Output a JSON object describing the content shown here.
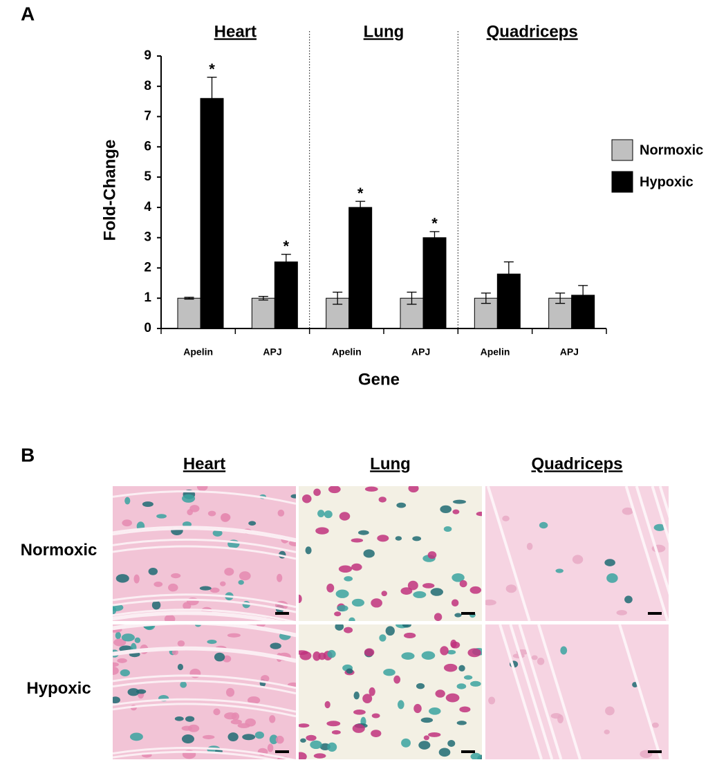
{
  "panel_a_label": "A",
  "chart_data": {
    "type": "bar",
    "groups": [
      "Heart",
      "Lung",
      "Quadriceps"
    ],
    "categories": [
      "Apelin",
      "APJ",
      "Apelin",
      "APJ",
      "Apelin",
      "APJ"
    ],
    "y_label": "Fold-Change",
    "x_label": "Gene",
    "series": [
      {
        "name": "Normoxic",
        "color": "#c0c0c0",
        "values": [
          1,
          1,
          1,
          1,
          1,
          1
        ],
        "errors": [
          0.03,
          0.06,
          0.2,
          0.2,
          0.17,
          0.17
        ]
      },
      {
        "name": "Hypoxic",
        "color": "#000000",
        "values": [
          7.6,
          2.2,
          4.0,
          3.0,
          1.8,
          1.1
        ],
        "errors": [
          0.7,
          0.25,
          0.2,
          0.2,
          0.4,
          0.32
        ]
      }
    ],
    "significance": [
      "*",
      "*",
      "*",
      "*",
      null,
      null
    ],
    "ylim": [
      0,
      9
    ],
    "yticks": [
      0,
      1,
      2,
      3,
      4,
      5,
      6,
      7,
      8,
      9
    ],
    "grid": false,
    "legend": "right"
  },
  "panel_b": {
    "label": "B",
    "columns": [
      "Heart",
      "Lung",
      "Quadriceps"
    ],
    "rows": [
      "Normoxic",
      "Hypoxic"
    ]
  }
}
